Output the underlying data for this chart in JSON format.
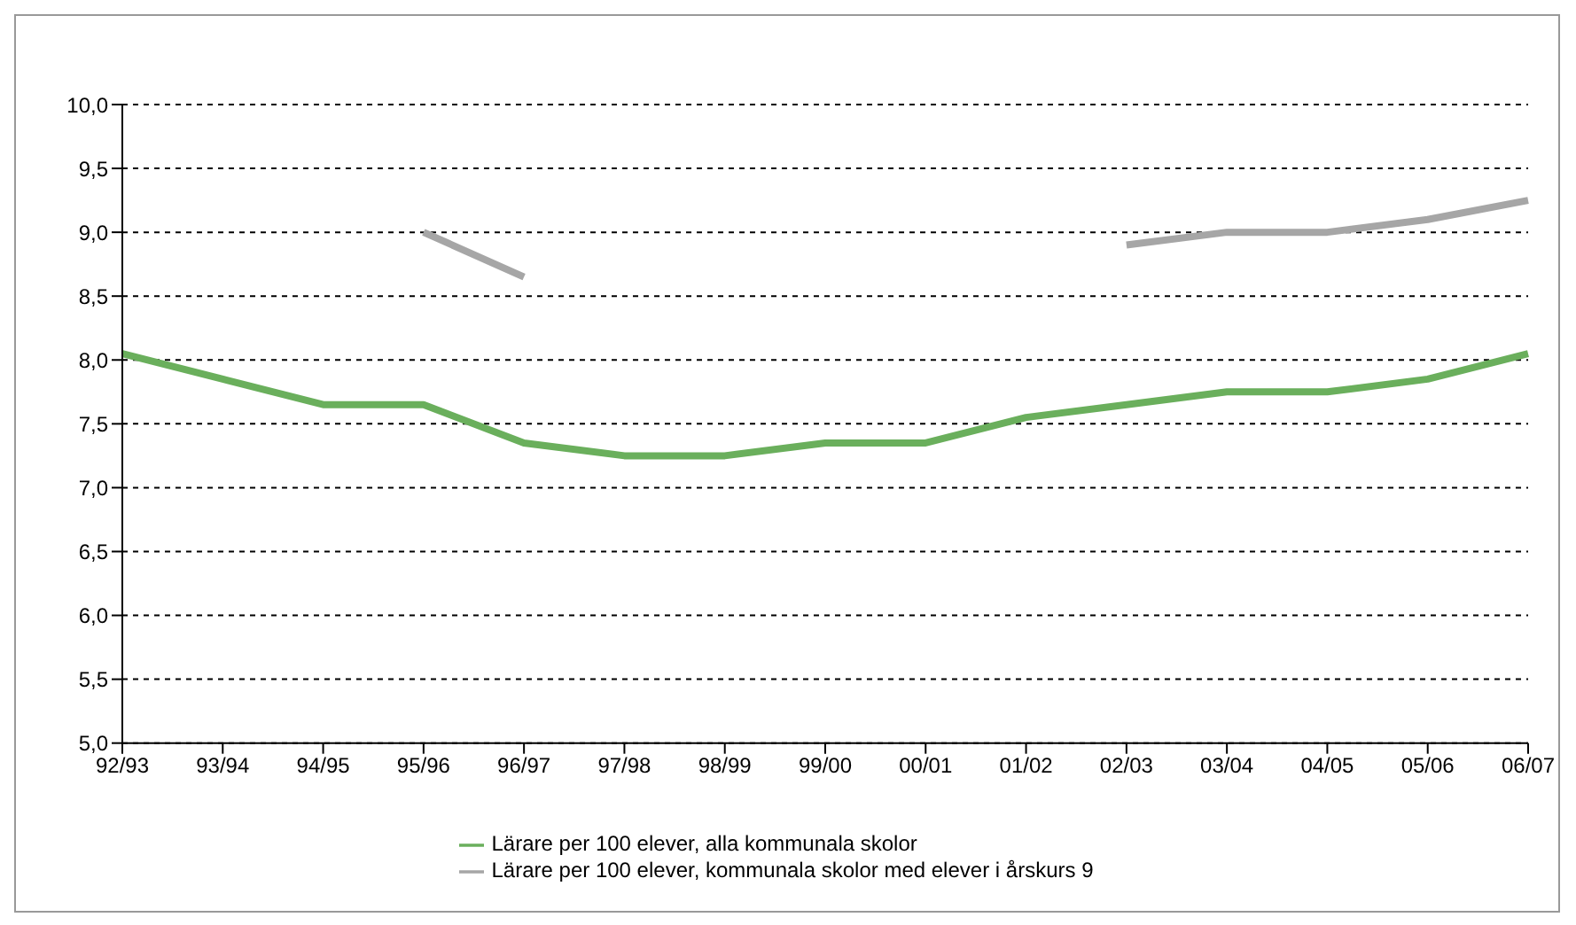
{
  "chart_data": {
    "type": "line",
    "categories": [
      "92/93",
      "93/94",
      "94/95",
      "95/96",
      "96/97",
      "97/98",
      "98/99",
      "99/00",
      "00/01",
      "01/02",
      "02/03",
      "03/04",
      "04/05",
      "05/06",
      "06/07"
    ],
    "series": [
      {
        "name": "Lärare per 100 elever, kommunala skolor med elever i årskurs 9",
        "color": "#a6a6a6",
        "values": [
          null,
          null,
          null,
          9.0,
          8.65,
          null,
          null,
          null,
          null,
          null,
          8.9,
          9.0,
          9.0,
          9.1,
          9.25
        ]
      },
      {
        "name": "Lärare per 100 elever, alla kommunala skolor",
        "color": "#6aaf5c",
        "values": [
          8.05,
          7.85,
          7.65,
          7.65,
          7.35,
          7.25,
          7.25,
          7.35,
          7.35,
          7.55,
          7.65,
          7.75,
          7.75,
          7.85,
          8.05
        ]
      }
    ],
    "ylim": [
      5,
      10
    ],
    "yticks": [
      {
        "value": 5,
        "label": "5,0"
      },
      {
        "value": 5.5,
        "label": "5,5"
      },
      {
        "value": 6,
        "label": "6,0"
      },
      {
        "value": 6.5,
        "label": "6,5"
      },
      {
        "value": 7,
        "label": "7,0"
      },
      {
        "value": 7.5,
        "label": "7,5"
      },
      {
        "value": 8,
        "label": "8,0"
      },
      {
        "value": 8.5,
        "label": "8,5"
      },
      {
        "value": 9,
        "label": "9,0"
      },
      {
        "value": 9.5,
        "label": "9,5"
      },
      {
        "value": 10,
        "label": "10,0"
      }
    ],
    "grid": "y",
    "legend": "bottom",
    "marker": "none",
    "line_style": "solid"
  }
}
